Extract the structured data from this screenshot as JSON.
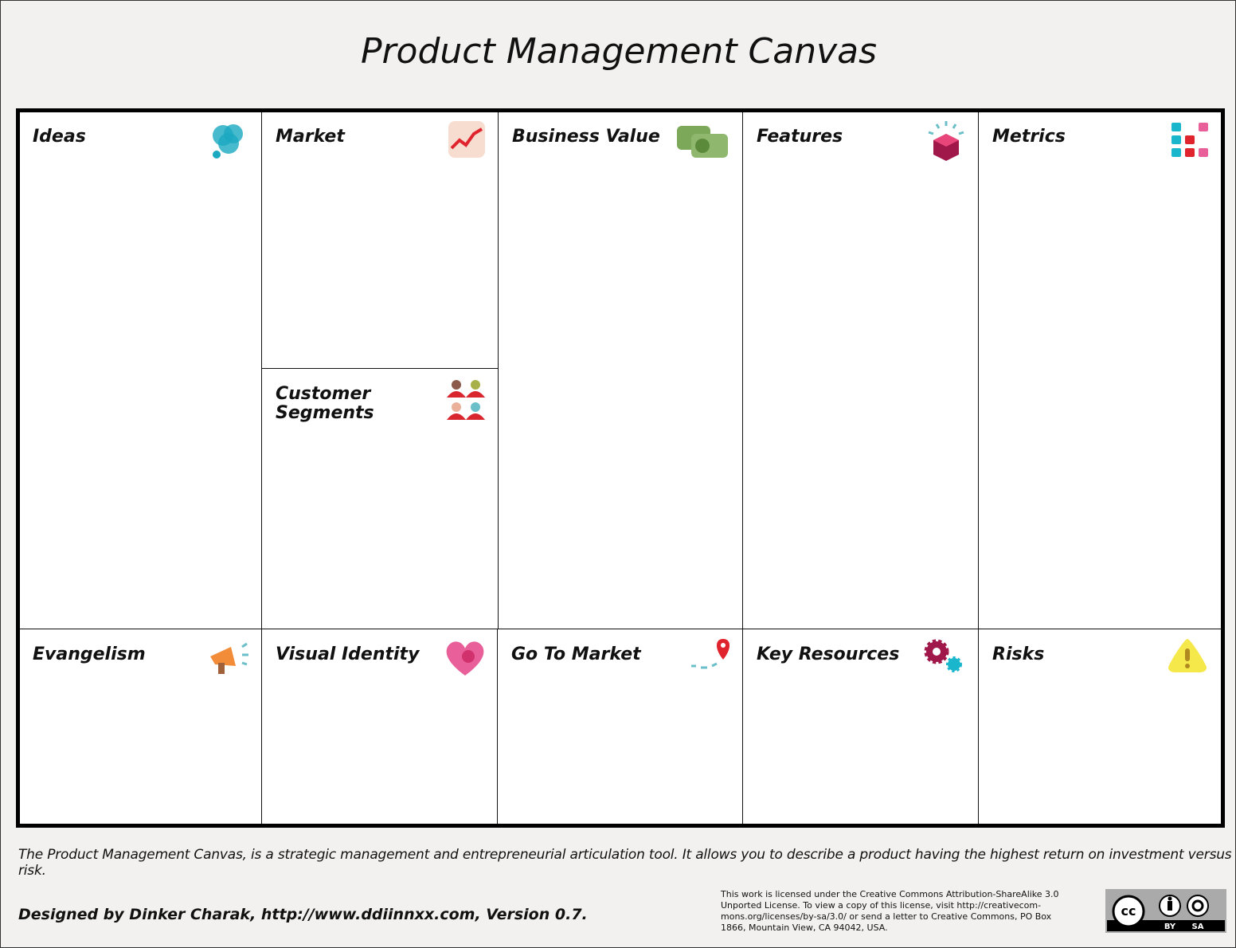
{
  "header": {
    "title": "Product Management Canvas"
  },
  "cells": [
    {
      "label": "Ideas"
    },
    {
      "label": "Market"
    },
    {
      "label": "Customer Segments"
    },
    {
      "label": "Business Value"
    },
    {
      "label": "Features"
    },
    {
      "label": "Metrics"
    },
    {
      "label": "Evangelism"
    },
    {
      "label": "Visual Identity"
    },
    {
      "label": "Go To Market"
    },
    {
      "label": "Key Resources"
    },
    {
      "label": "Risks"
    }
  ],
  "description": "The Product Management Canvas, is a strategic management and entrepreneurial articulation tool. It allows you to describe a product having the highest return on investment versus risk.",
  "footer": {
    "credit": "Designed by Dinker Charak, http://www.ddiinnxx.com, Version 0.7.",
    "license": [
      "This work is licensed under the Creative Commons Attribution-ShareAlike 3.0",
      "Unported License. To view a copy of this license, visit http://creativecom-",
      "mons.org/licenses/by-sa/3.0/ or send a letter to Creative Commons, PO Box",
      "1866, Mountain View, CA 94042, USA."
    ],
    "badge": [
      "cc",
      "BY",
      "SA"
    ]
  }
}
